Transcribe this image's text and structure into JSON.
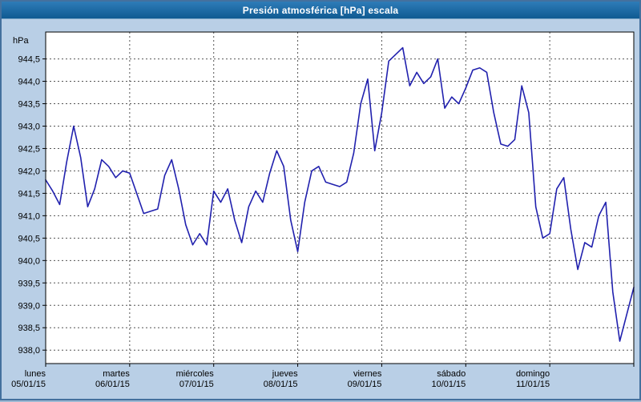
{
  "window": {
    "title": "Presión atmosférica [hPa] escala"
  },
  "chart_data": {
    "type": "line",
    "title": "Presión atmosférica [hPa] escala",
    "ylabel": "hPa",
    "xlabel": "",
    "ylim": [
      937.7,
      945.1
    ],
    "grid": true,
    "legend": "none",
    "line_color": "#2121ae",
    "grid_color": "#555555",
    "plot_background": "#ffffff",
    "ytick_labels": [
      "944,5",
      "944,0",
      "943,5",
      "943,0",
      "942,5",
      "942,0",
      "941,5",
      "941,0",
      "940,5",
      "940,0",
      "939,5",
      "939,0",
      "938,5",
      "938,0"
    ],
    "categories": [
      {
        "day": "lunes",
        "date": "05/01/15"
      },
      {
        "day": "martes",
        "date": "06/01/15"
      },
      {
        "day": "miércoles",
        "date": "07/01/15"
      },
      {
        "day": "jueves",
        "date": "08/01/15"
      },
      {
        "day": "viernes",
        "date": "09/01/15"
      },
      {
        "day": "sábado",
        "date": "10/01/15"
      },
      {
        "day": "domingo",
        "date": "11/01/15"
      }
    ],
    "sampling": "2-hour intervals, 12 points per day, 7 days",
    "values": [
      941.8,
      941.55,
      941.25,
      942.2,
      943.0,
      942.3,
      941.2,
      941.6,
      942.25,
      942.1,
      941.85,
      942.0,
      941.95,
      941.5,
      941.05,
      941.1,
      941.15,
      941.9,
      942.25,
      941.6,
      940.8,
      940.35,
      940.6,
      940.35,
      941.55,
      941.3,
      941.6,
      940.9,
      940.4,
      941.2,
      941.55,
      941.3,
      941.95,
      942.45,
      942.1,
      940.9,
      940.2,
      941.3,
      942.0,
      942.1,
      941.75,
      941.7,
      941.65,
      941.75,
      942.4,
      943.5,
      944.05,
      942.45,
      943.3,
      944.45,
      944.6,
      944.75,
      943.9,
      944.2,
      943.95,
      944.1,
      944.5,
      943.4,
      943.65,
      943.5,
      943.85,
      944.25,
      944.3,
      944.2,
      943.3,
      942.6,
      942.55,
      942.7,
      943.9,
      943.3,
      941.2,
      940.5,
      940.6,
      941.6,
      941.85,
      940.7,
      939.8,
      940.4,
      940.3,
      941.0,
      941.3,
      939.3,
      938.2,
      938.8,
      939.4
    ]
  }
}
